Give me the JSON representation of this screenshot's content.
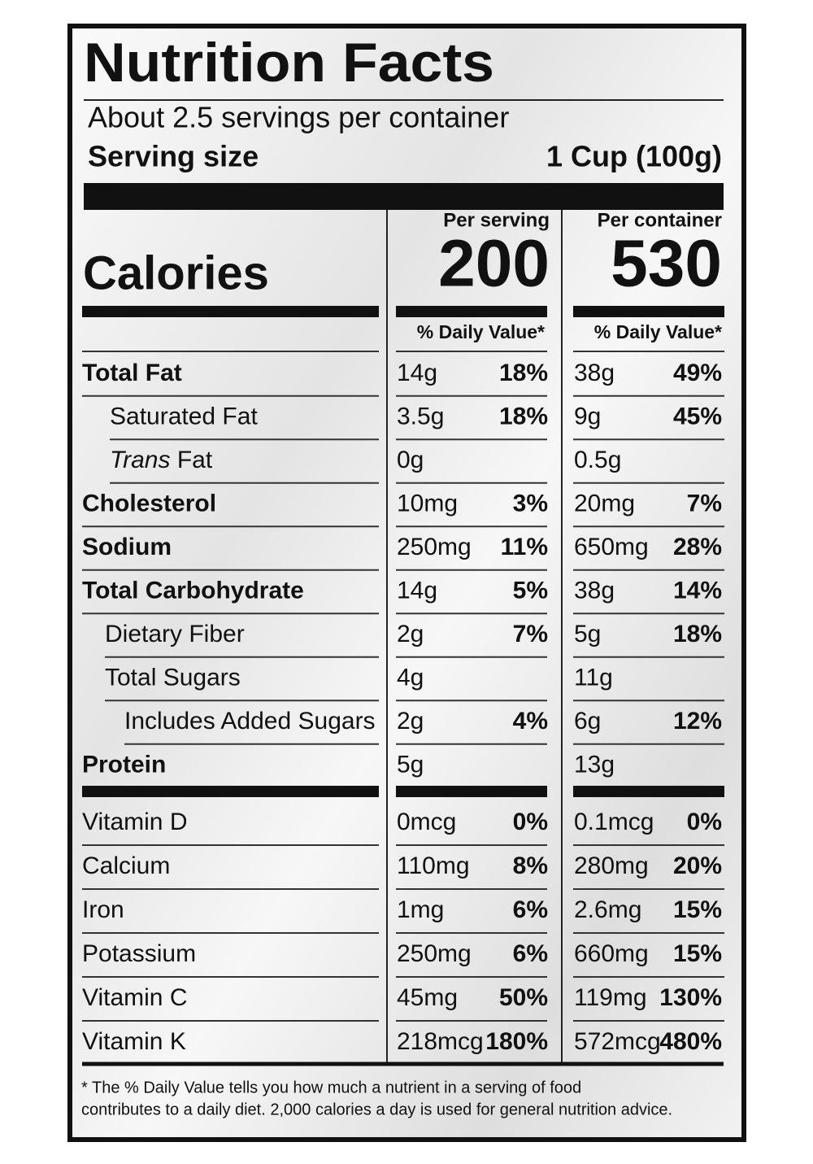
{
  "header": {
    "title": "Nutrition Facts",
    "servings": "About 2.5 servings per container",
    "serving_size_label": "Serving size",
    "serving_size_value": "1 Cup (100g)"
  },
  "calories": {
    "label": "Calories",
    "per_serving_label": "Per serving",
    "per_serving": 200,
    "per_container_label": "Per container",
    "per_container": 530,
    "dv_label": "% Daily Value*"
  },
  "nutrients": [
    {
      "name": "Total Fat",
      "serving_amount": "14g",
      "serving_dv": "18%",
      "container_amount": "38g",
      "container_dv": "49%"
    },
    {
      "name": "Saturated Fat",
      "serving_amount": "3.5g",
      "serving_dv": "18%",
      "container_amount": "9g",
      "container_dv": "45%"
    },
    {
      "name_italic": "Trans",
      "name": "Fat",
      "serving_amount": "0g",
      "container_amount": "0.5g"
    },
    {
      "name": "Cholesterol",
      "serving_amount": "10mg",
      "serving_dv": "3%",
      "container_amount": "20mg",
      "container_dv": "7%"
    },
    {
      "name": "Sodium",
      "serving_amount": "250mg",
      "serving_dv": "11%",
      "container_amount": "650mg",
      "container_dv": "28%"
    },
    {
      "name": "Total Carbohydrate",
      "serving_amount": "14g",
      "serving_dv": "5%",
      "container_amount": "38g",
      "container_dv": "14%"
    },
    {
      "name": "Dietary Fiber",
      "serving_amount": "2g",
      "serving_dv": "7%",
      "container_amount": "5g",
      "container_dv": "18%"
    },
    {
      "name": "Total Sugars",
      "serving_amount": "4g",
      "container_amount": "11g"
    },
    {
      "name": "Includes Added Sugars",
      "serving_amount": "2g",
      "serving_dv": "4%",
      "container_amount": "6g",
      "container_dv": "12%"
    },
    {
      "name": "Protein",
      "serving_amount": "5g",
      "container_amount": "13g"
    }
  ],
  "vitamins": [
    {
      "name": "Vitamin D",
      "serving_amount": "0mcg",
      "serving_dv": "0%",
      "container_amount": "0.1mcg",
      "container_dv": "0%"
    },
    {
      "name": "Calcium",
      "serving_amount": "110mg",
      "serving_dv": "8%",
      "container_amount": "280mg",
      "container_dv": "20%"
    },
    {
      "name": "Iron",
      "serving_amount": "1mg",
      "serving_dv": "6%",
      "container_amount": "2.6mg",
      "container_dv": "15%"
    },
    {
      "name": "Potassium",
      "serving_amount": "250mg",
      "serving_dv": "6%",
      "container_amount": "660mg",
      "container_dv": "15%"
    },
    {
      "name": "Vitamin C",
      "serving_amount": "45mg",
      "serving_dv": "50%",
      "container_amount": "119mg",
      "container_dv": "130%"
    },
    {
      "name": "Vitamin K",
      "serving_amount": "218mcg",
      "serving_dv": "180%",
      "container_amount": "572mcg",
      "container_dv": "480%"
    }
  ],
  "footnote": [
    "* The % Daily Value tells you how much a nutrient in a serving of food",
    "contributes to a daily diet. 2,000 calories a  day is used for general nutrition advice."
  ]
}
